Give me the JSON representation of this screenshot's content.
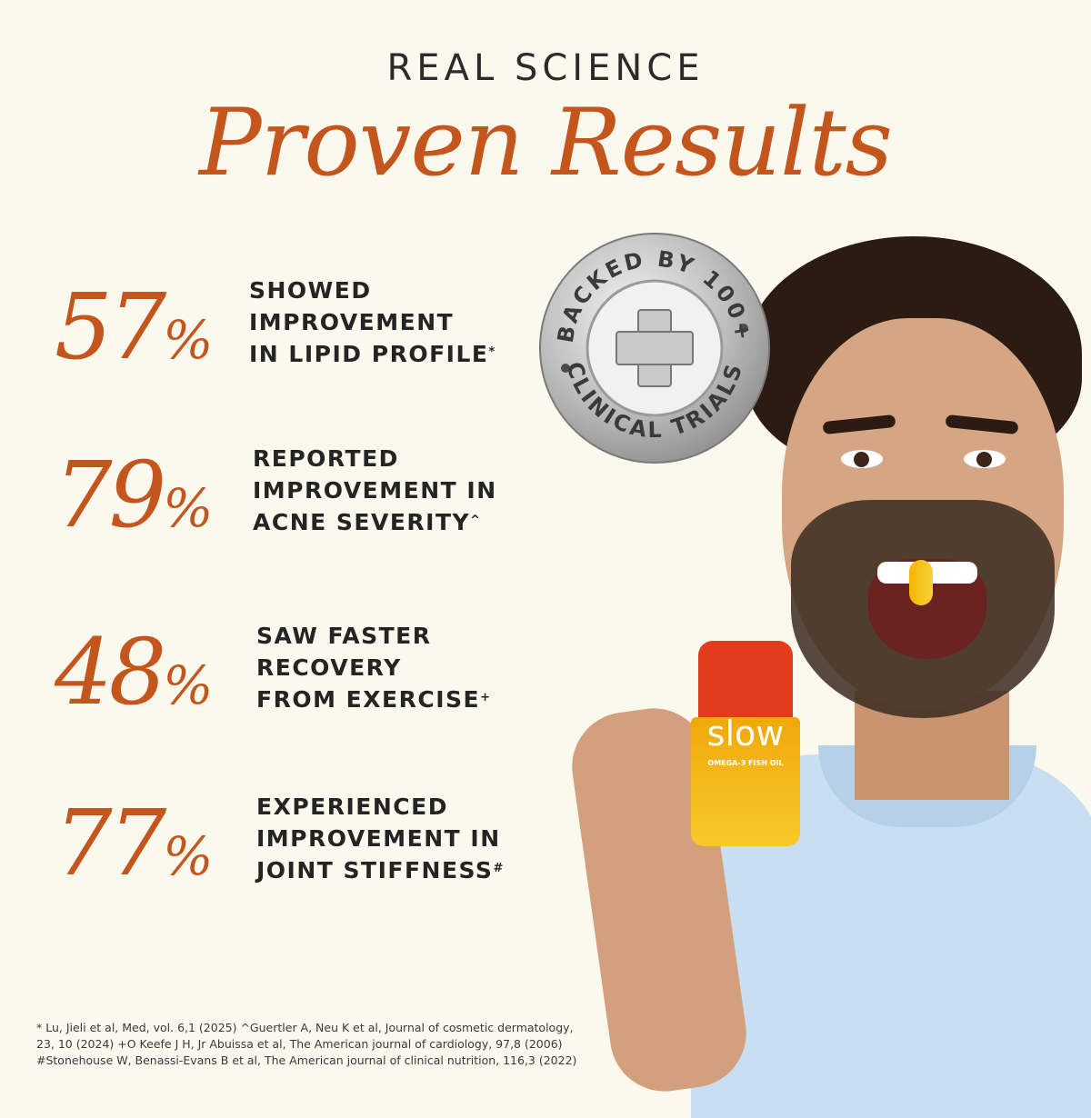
{
  "header": {
    "kicker": "REAL SCIENCE",
    "headline": "Proven Results"
  },
  "stats": [
    {
      "number": "57",
      "unit": "%",
      "lines": [
        "SHOWED",
        "IMPROVEMENT",
        "IN LIPID PROFILE"
      ],
      "mark": "*"
    },
    {
      "number": "79",
      "unit": "%",
      "lines": [
        "REPORTED",
        "IMPROVEMENT IN",
        "ACNE SEVERITY"
      ],
      "mark": "^"
    },
    {
      "number": "48",
      "unit": "%",
      "lines": [
        "SAW FASTER",
        "RECOVERY",
        "FROM EXERCISE"
      ],
      "mark": "+"
    },
    {
      "number": "77",
      "unit": "%",
      "lines": [
        "EXPERIENCED",
        "IMPROVEMENT IN",
        "JOINT STIFFNESS"
      ],
      "mark": "#"
    }
  ],
  "seal": {
    "top_text": "BACKED BY 100+",
    "bottom_text": "CLINICAL TRIALS",
    "icon": "plus-cross-icon"
  },
  "product": {
    "brand": "slow",
    "label": "OMEGA-3 FISH OIL"
  },
  "footnotes": [
    "* Lu, Jieli et al, Med, vol. 6,1 (2025) ^Guertler A, Neu K et al, Journal of cosmetic dermatology,",
    "23, 10 (2024) +O Keefe J H, Jr Abuissa et al, The American journal of cardiology, 97,8 (2006)",
    "#Stonehouse W, Benassi-Evans B et al, The American journal of clinical nutrition, 116,3 (2022)"
  ],
  "colors": {
    "background": "#fbf8ee",
    "accent": "#c4561d",
    "text": "#242424"
  }
}
